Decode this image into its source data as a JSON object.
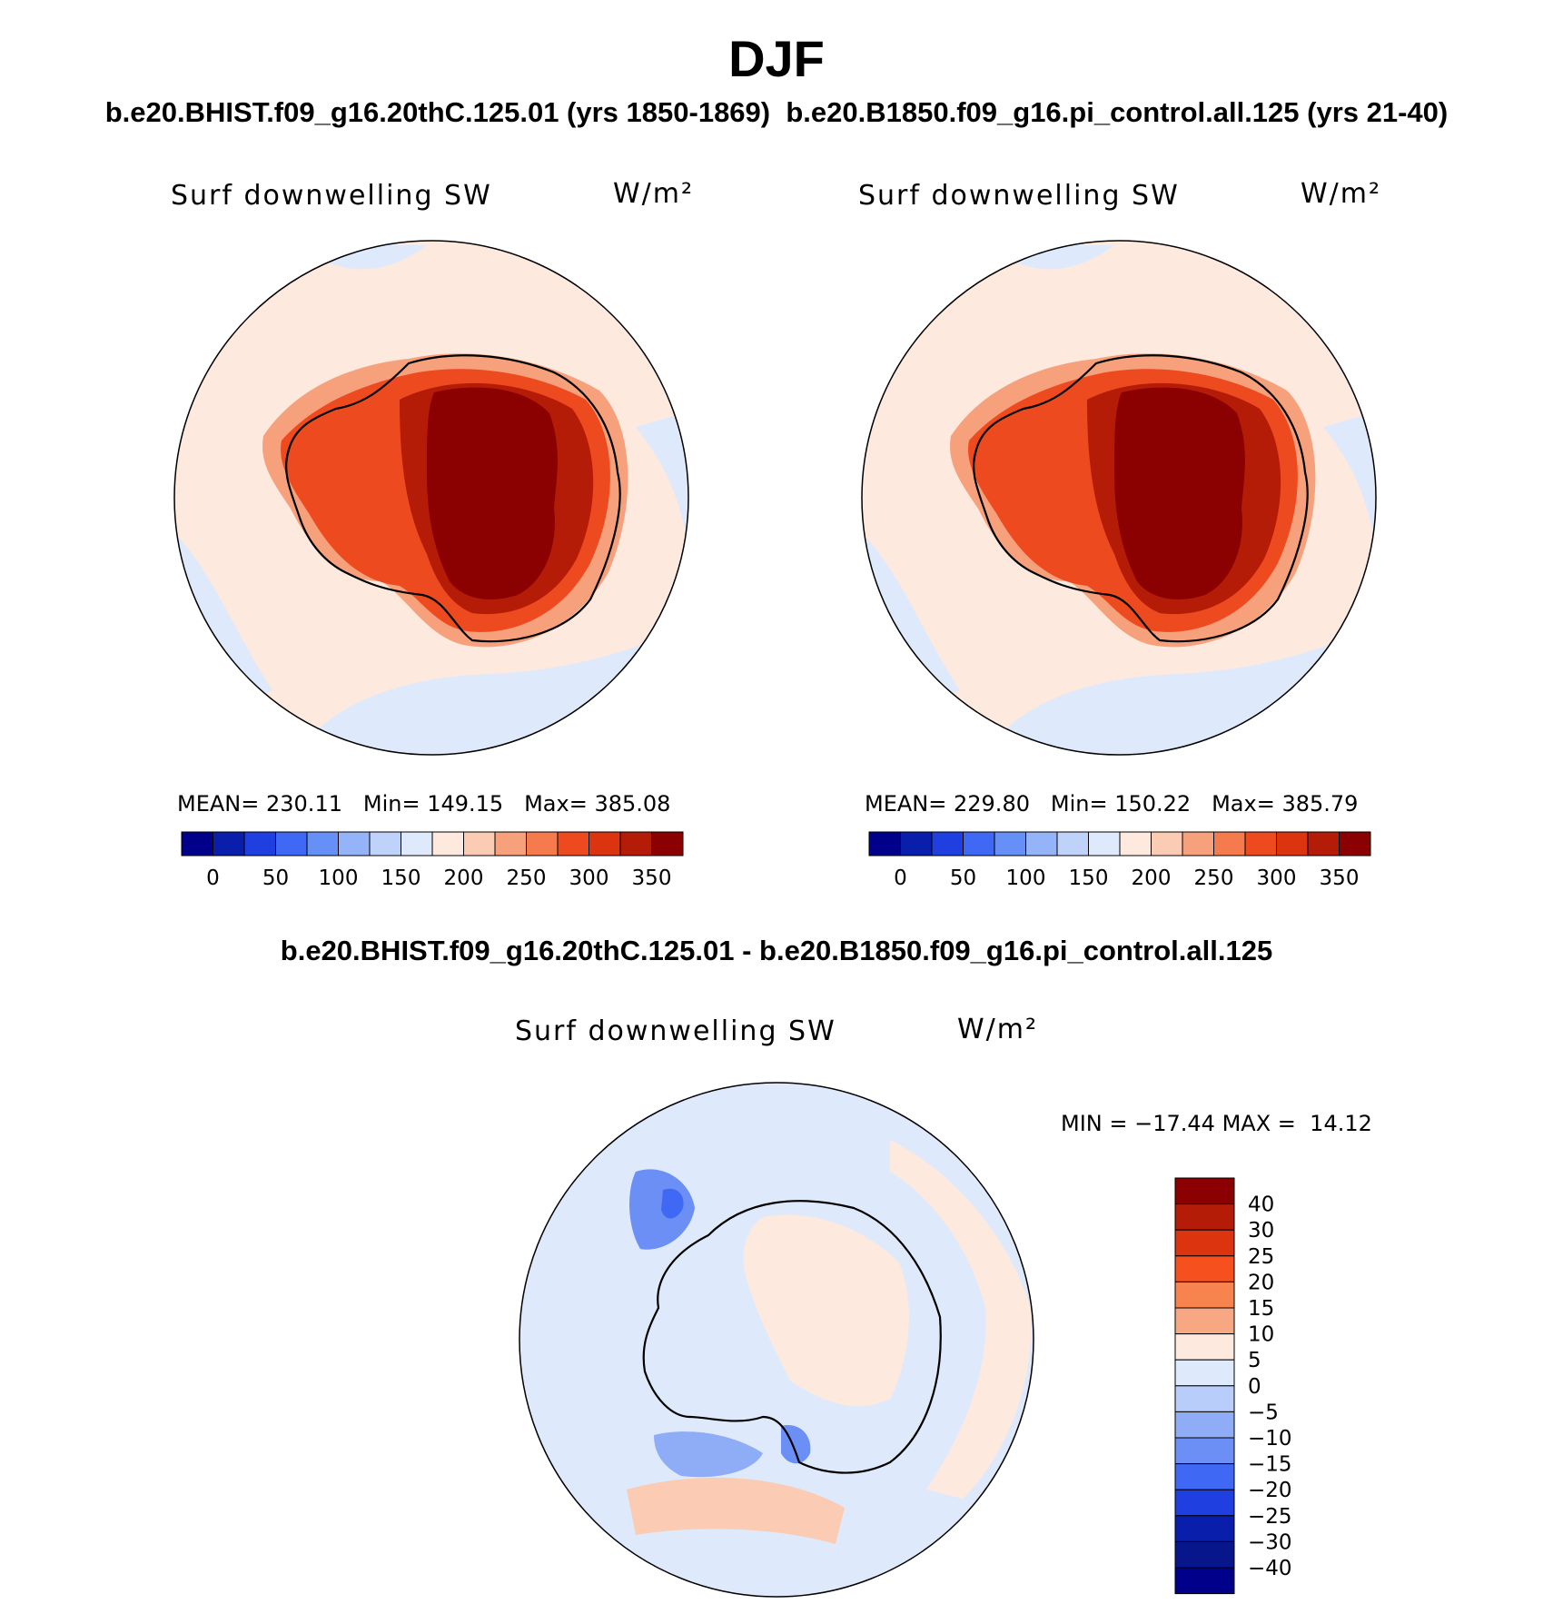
{
  "figure": {
    "title": "DJF",
    "subtitle_left": "b.e20.BHIST.f09_g16.20thC.125.01 (yrs 1850-1869)",
    "subtitle_right": "b.e20.B1850.f09_g16.pi_control.all.125 (yrs 21-40)",
    "diff_title": "b.e20.BHIST.f09_g16.20thC.125.01 - b.e20.B1850.f09_g16.pi_control.all.125"
  },
  "chart_data": [
    {
      "type": "heatmap",
      "projection": "south-polar-stereographic",
      "variable": "Surf downwelling SW",
      "units": "W/m²",
      "mean_label": "MEAN=",
      "mean": "230.11",
      "min_label": "Min=",
      "min": "149.15",
      "max_label": "Max=",
      "max": "385.08",
      "colorbar_ticks": [
        "0",
        "50",
        "100",
        "150",
        "200",
        "250",
        "300",
        "350"
      ],
      "colorbar_colors": [
        "#00008b",
        "#0a1eac",
        "#1f3fe0",
        "#3f68f4",
        "#6690f6",
        "#94b3f8",
        "#bfd2fa",
        "#deeafc",
        "#fde9de",
        "#fbcbb3",
        "#f7a07c",
        "#f57a4e",
        "#ee4a20",
        "#dd3410",
        "#b51c08",
        "#8b0000"
      ]
    },
    {
      "type": "heatmap",
      "projection": "south-polar-stereographic",
      "variable": "Surf downwelling SW",
      "units": "W/m²",
      "mean_label": "MEAN=",
      "mean": "229.80",
      "min_label": "Min=",
      "min": "150.22",
      "max_label": "Max=",
      "max": "385.79",
      "colorbar_ticks": [
        "0",
        "50",
        "100",
        "150",
        "200",
        "250",
        "300",
        "350"
      ],
      "colorbar_colors": [
        "#00008b",
        "#0a1eac",
        "#1f3fe0",
        "#3f68f4",
        "#6690f6",
        "#94b3f8",
        "#bfd2fa",
        "#deeafc",
        "#fde9de",
        "#fbcbb3",
        "#f7a07c",
        "#f57a4e",
        "#ee4a20",
        "#dd3410",
        "#b51c08",
        "#8b0000"
      ]
    },
    {
      "type": "heatmap",
      "projection": "south-polar-stereographic",
      "variable": "Surf downwelling SW",
      "units": "W/m²",
      "min_label": "MIN =",
      "min": "−17.44",
      "max_label": "MAX =",
      "max": "14.12",
      "colorbar_ticks": [
        "40",
        "30",
        "25",
        "20",
        "15",
        "10",
        "5",
        "0",
        "−5",
        "−10",
        "−15",
        "−20",
        "−25",
        "−30",
        "−40"
      ],
      "colorbar_colors": [
        "#8b0000",
        "#b51c08",
        "#dd3410",
        "#f5501e",
        "#f7844f",
        "#f7a882",
        "#fde9de",
        "#deeafc",
        "#b8cdf9",
        "#8fadf6",
        "#6b8ff5",
        "#3f68f4",
        "#1f3fe0",
        "#0a1eac",
        "#07168a",
        "#00008b"
      ]
    }
  ]
}
